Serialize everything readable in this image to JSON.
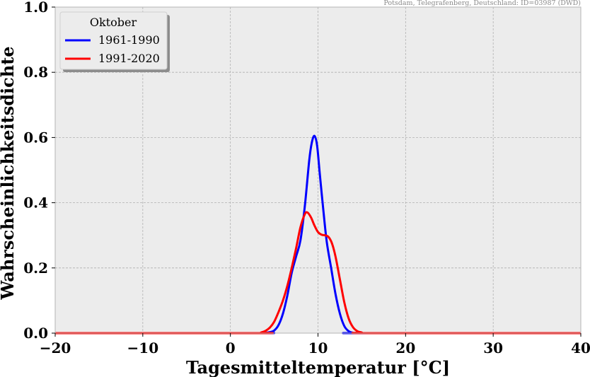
{
  "chart_data": {
    "type": "line",
    "title": "",
    "source_note": "Potsdam, Telegrafenberg, Deutschland: ID=03987 (DWD)",
    "xlabel": "Tagesmitteltemperatur [°C]",
    "ylabel": "Wahrscheinlichkeitsdichte",
    "xlim": [
      -20,
      40
    ],
    "ylim": [
      0,
      1.0
    ],
    "xticks": [
      -20,
      -10,
      0,
      10,
      20,
      30,
      40
    ],
    "xtick_labels": [
      "−20",
      "−10",
      "0",
      "10",
      "20",
      "30",
      "40"
    ],
    "yticks": [
      0.0,
      0.2,
      0.4,
      0.6,
      0.8,
      1.0
    ],
    "ytick_labels": [
      "0.0",
      "0.2",
      "0.4",
      "0.6",
      "0.8",
      "1.0"
    ],
    "grid": true,
    "background": "#ececec",
    "legend": {
      "title": "Oktober",
      "placement": "top-left"
    },
    "series": [
      {
        "name": "1961-1990",
        "color": "#0000ff",
        "x": [
          -20,
          3,
          4,
          4.5,
          5,
          5.5,
          6,
          6.5,
          7,
          7.5,
          8,
          8.5,
          9,
          9.3,
          9.6,
          9.9,
          10.2,
          10.6,
          11,
          11.5,
          12,
          12.5,
          13,
          13.5,
          14,
          15,
          40
        ],
        "y": [
          0,
          0,
          0.001,
          0.003,
          0.008,
          0.025,
          0.06,
          0.115,
          0.185,
          0.235,
          0.285,
          0.39,
          0.53,
          0.585,
          0.605,
          0.575,
          0.49,
          0.38,
          0.28,
          0.2,
          0.12,
          0.06,
          0.022,
          0.006,
          0.001,
          0,
          0
        ]
      },
      {
        "name": "1991-2020",
        "color": "#ff0000",
        "x": [
          -20,
          3,
          3.5,
          4,
          4.5,
          5,
          5.5,
          6,
          6.5,
          7,
          7.5,
          8,
          8.5,
          8.8,
          9.2,
          9.6,
          10,
          10.4,
          10.8,
          11.2,
          11.6,
          12,
          12.5,
          13,
          13.5,
          14,
          14.5,
          15,
          16,
          40
        ],
        "y": [
          0,
          0,
          0.002,
          0.007,
          0.017,
          0.035,
          0.065,
          0.1,
          0.145,
          0.2,
          0.26,
          0.325,
          0.365,
          0.37,
          0.355,
          0.33,
          0.31,
          0.302,
          0.3,
          0.295,
          0.275,
          0.235,
          0.165,
          0.095,
          0.045,
          0.018,
          0.006,
          0.002,
          0,
          0
        ]
      }
    ]
  }
}
